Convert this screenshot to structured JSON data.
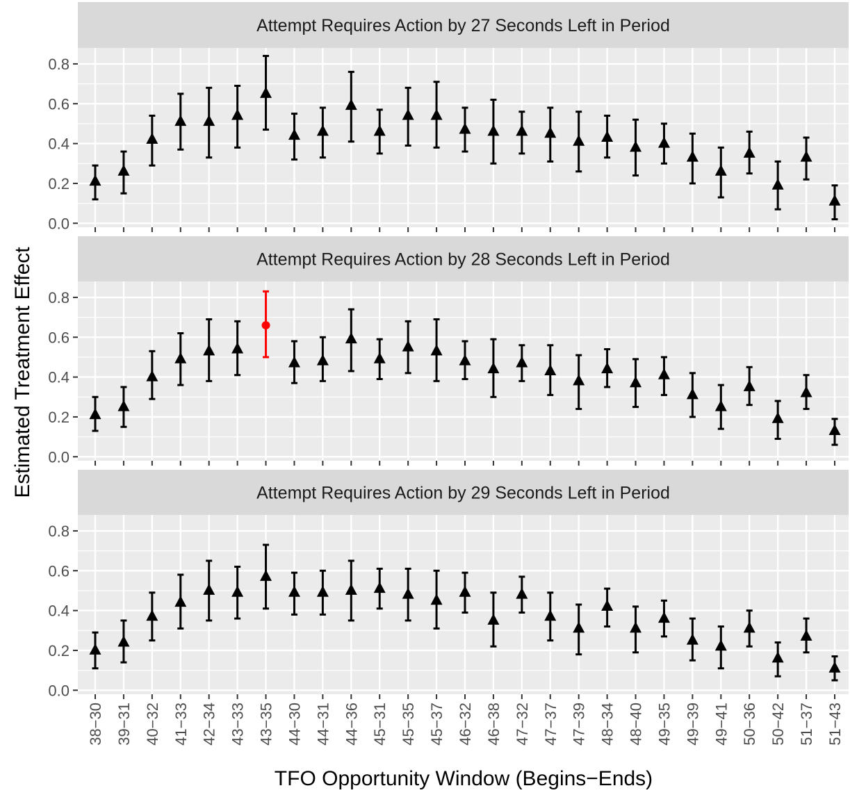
{
  "chart_data": {
    "type": "errorbar",
    "x_label": "TFO Opportunity Window (Begins−Ends)",
    "y_label": "Estimated Treatment Effect",
    "categories": [
      "38−30",
      "39−31",
      "40−32",
      "41−33",
      "42−34",
      "43−33",
      "43−35",
      "44−30",
      "44−31",
      "44−36",
      "45−31",
      "45−35",
      "45−37",
      "46−32",
      "46−38",
      "47−32",
      "47−37",
      "47−39",
      "48−34",
      "48−40",
      "49−35",
      "49−39",
      "49−41",
      "50−36",
      "50−42",
      "51−37",
      "51−43"
    ],
    "y_ticks": [
      0.0,
      0.2,
      0.4,
      0.6,
      0.8
    ],
    "y_tick_labels": [
      "0.0",
      "0.2",
      "0.4",
      "0.6",
      "0.8"
    ],
    "ylim": [
      -0.02,
      0.88
    ],
    "grid": true,
    "colors": {
      "default": "#000000",
      "highlight": "#ff0000",
      "panel_bg": "#ebebeb",
      "strip_bg": "#d9d9d9",
      "grid": "#ffffff"
    },
    "panels": [
      {
        "title": "Attempt Requires Action by 27 Seconds Left in Period",
        "estimate": [
          0.21,
          0.26,
          0.42,
          0.51,
          0.51,
          0.54,
          0.65,
          0.44,
          0.46,
          0.59,
          0.46,
          0.54,
          0.54,
          0.47,
          0.46,
          0.46,
          0.45,
          0.41,
          0.43,
          0.38,
          0.4,
          0.33,
          0.26,
          0.35,
          0.19,
          0.33,
          0.11
        ],
        "lower": [
          0.12,
          0.15,
          0.29,
          0.37,
          0.33,
          0.38,
          0.47,
          0.32,
          0.33,
          0.41,
          0.35,
          0.39,
          0.38,
          0.36,
          0.3,
          0.35,
          0.31,
          0.26,
          0.33,
          0.24,
          0.3,
          0.2,
          0.13,
          0.25,
          0.07,
          0.22,
          0.02
        ],
        "upper": [
          0.29,
          0.36,
          0.54,
          0.65,
          0.68,
          0.69,
          0.84,
          0.55,
          0.58,
          0.76,
          0.57,
          0.68,
          0.71,
          0.58,
          0.62,
          0.56,
          0.58,
          0.56,
          0.54,
          0.52,
          0.5,
          0.45,
          0.38,
          0.46,
          0.31,
          0.43,
          0.19
        ],
        "highlight_index": -1
      },
      {
        "title": "Attempt Requires Action by 28 Seconds Left in Period",
        "estimate": [
          0.21,
          0.25,
          0.4,
          0.49,
          0.53,
          0.54,
          0.66,
          0.47,
          0.48,
          0.59,
          0.49,
          0.55,
          0.53,
          0.48,
          0.44,
          0.47,
          0.43,
          0.38,
          0.44,
          0.37,
          0.41,
          0.31,
          0.25,
          0.35,
          0.19,
          0.32,
          0.13
        ],
        "lower": [
          0.13,
          0.15,
          0.29,
          0.36,
          0.38,
          0.41,
          0.5,
          0.37,
          0.38,
          0.43,
          0.39,
          0.42,
          0.38,
          0.39,
          0.3,
          0.38,
          0.31,
          0.24,
          0.35,
          0.25,
          0.31,
          0.2,
          0.14,
          0.26,
          0.09,
          0.24,
          0.06
        ],
        "upper": [
          0.3,
          0.35,
          0.53,
          0.62,
          0.69,
          0.68,
          0.83,
          0.58,
          0.6,
          0.74,
          0.59,
          0.68,
          0.69,
          0.58,
          0.59,
          0.56,
          0.56,
          0.51,
          0.54,
          0.49,
          0.5,
          0.42,
          0.36,
          0.45,
          0.28,
          0.41,
          0.19
        ],
        "highlight_index": 6
      },
      {
        "title": "Attempt Requires Action by 29 Seconds Left in Period",
        "estimate": [
          0.2,
          0.24,
          0.37,
          0.44,
          0.5,
          0.49,
          0.57,
          0.49,
          0.49,
          0.5,
          0.51,
          0.48,
          0.45,
          0.49,
          0.35,
          0.48,
          0.37,
          0.31,
          0.42,
          0.31,
          0.36,
          0.25,
          0.22,
          0.31,
          0.16,
          0.27,
          0.11
        ],
        "lower": [
          0.11,
          0.14,
          0.25,
          0.31,
          0.35,
          0.36,
          0.41,
          0.38,
          0.38,
          0.35,
          0.41,
          0.35,
          0.31,
          0.39,
          0.22,
          0.39,
          0.25,
          0.18,
          0.32,
          0.19,
          0.27,
          0.15,
          0.11,
          0.22,
          0.07,
          0.19,
          0.05
        ],
        "upper": [
          0.29,
          0.35,
          0.49,
          0.58,
          0.65,
          0.62,
          0.73,
          0.59,
          0.6,
          0.65,
          0.61,
          0.61,
          0.6,
          0.59,
          0.49,
          0.57,
          0.49,
          0.43,
          0.51,
          0.42,
          0.45,
          0.36,
          0.32,
          0.4,
          0.24,
          0.36,
          0.17
        ],
        "highlight_index": -1
      }
    ]
  }
}
